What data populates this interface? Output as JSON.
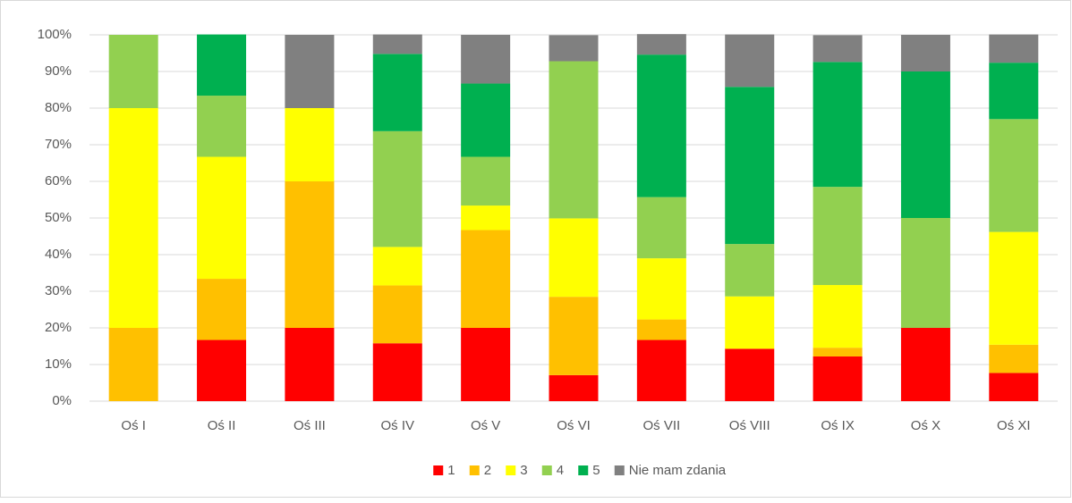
{
  "chart_data": {
    "type": "bar",
    "stacked": true,
    "categories": [
      "Oś I",
      "Oś II",
      "Oś III",
      "Oś IV",
      "Oś V",
      "Oś VI",
      "Oś VII",
      "Oś VIII",
      "Oś IX",
      "Oś X",
      "Oś XI"
    ],
    "series": [
      {
        "name": "1",
        "color": "#ff0000",
        "values": [
          0,
          16.7,
          20,
          15.8,
          20,
          7.1,
          16.7,
          14.3,
          12.2,
          20,
          7.7
        ]
      },
      {
        "name": "2",
        "color": "#ffc000",
        "values": [
          20,
          16.7,
          40,
          15.8,
          26.7,
          21.4,
          5.6,
          0,
          2.4,
          0,
          7.7
        ]
      },
      {
        "name": "3",
        "color": "#ffff00",
        "values": [
          60,
          33.3,
          20,
          10.5,
          6.7,
          21.4,
          16.7,
          14.3,
          17.1,
          0,
          30.8
        ]
      },
      {
        "name": "4",
        "color": "#92d050",
        "values": [
          20,
          16.7,
          0,
          31.6,
          13.3,
          42.9,
          16.7,
          14.3,
          26.8,
          30,
          30.8
        ]
      },
      {
        "name": "5",
        "color": "#00b050",
        "values": [
          0,
          16.7,
          0,
          21.1,
          20,
          0,
          38.9,
          42.9,
          34.1,
          40,
          15.4
        ]
      },
      {
        "name": "Nie mam zdania",
        "color": "#808080",
        "values": [
          0,
          0,
          20,
          5.3,
          13.3,
          7.1,
          5.6,
          14.3,
          7.3,
          10,
          7.7
        ]
      }
    ],
    "ylim": [
      0,
      100
    ],
    "yticks": [
      {
        "value": 0,
        "label": "0%"
      },
      {
        "value": 10,
        "label": "10%"
      },
      {
        "value": 20,
        "label": "20%"
      },
      {
        "value": 30,
        "label": "30%"
      },
      {
        "value": 40,
        "label": "40%"
      },
      {
        "value": 50,
        "label": "50%"
      },
      {
        "value": 60,
        "label": "60%"
      },
      {
        "value": 70,
        "label": "70%"
      },
      {
        "value": 80,
        "label": "80%"
      },
      {
        "value": 90,
        "label": "90%"
      },
      {
        "value": 100,
        "label": "100%"
      }
    ],
    "grid": true,
    "legend": "bottom"
  }
}
